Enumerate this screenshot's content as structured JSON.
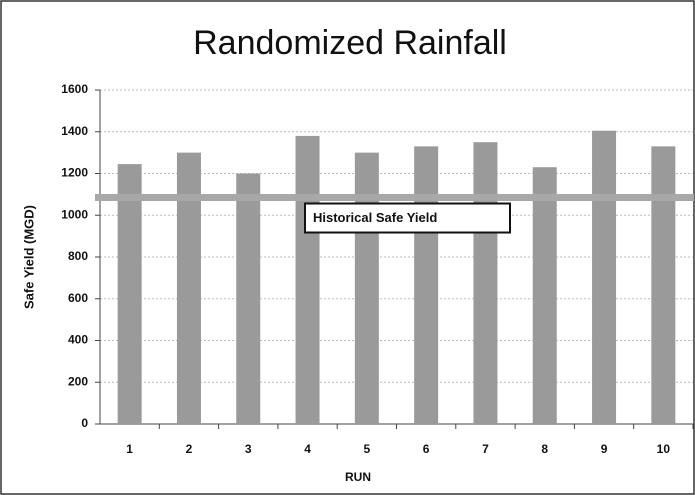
{
  "chart_data": {
    "type": "bar",
    "title": "Randomized Rainfall",
    "x_label": "RUN",
    "y_label": "Safe Yield (MGD)",
    "categories": [
      "1",
      "2",
      "3",
      "4",
      "5",
      "6",
      "7",
      "8",
      "9",
      "10"
    ],
    "values": [
      1245,
      1300,
      1200,
      1380,
      1300,
      1330,
      1350,
      1230,
      1405,
      1330
    ],
    "color": "#9a9a9a",
    "ylim": [
      0,
      1600
    ],
    "yticks": [
      0,
      200,
      400,
      600,
      800,
      1000,
      1200,
      1400,
      1600
    ],
    "grid": true,
    "reference_line": {
      "value": 1085,
      "label": "Historical Safe Yield",
      "color": "#a8a8a8"
    }
  }
}
